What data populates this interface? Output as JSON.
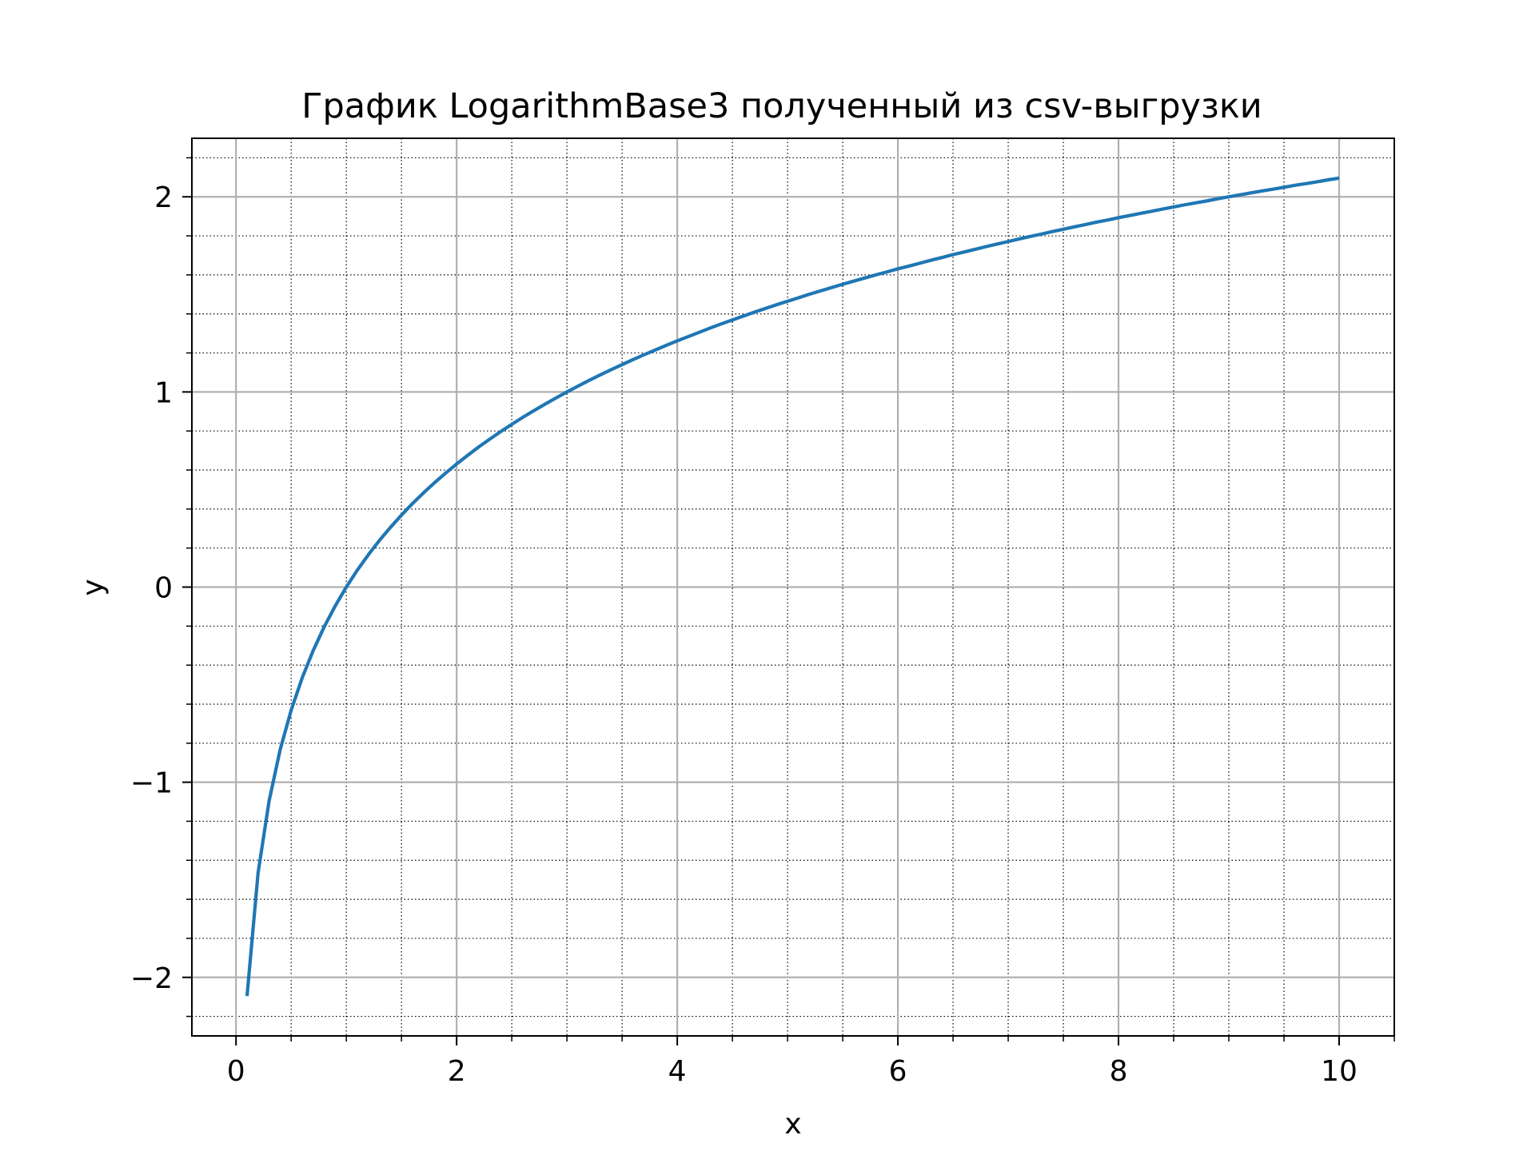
{
  "chart_data": {
    "type": "line",
    "title": "График LogarithmBase3 полученный из csv-выгрузки",
    "xlabel": "x",
    "ylabel": "y",
    "xlim": [
      -0.4,
      10.5
    ],
    "ylim": [
      -2.3,
      2.3
    ],
    "x_ticks": [
      0,
      2,
      4,
      6,
      8,
      10
    ],
    "x_tick_labels": [
      "0",
      "2",
      "4",
      "6",
      "8",
      "10"
    ],
    "y_ticks": [
      -2,
      -1,
      0,
      1,
      2
    ],
    "y_tick_labels": [
      "−2",
      "−1",
      "0",
      "1",
      "2"
    ],
    "x_minor_step": 0.5,
    "y_minor_step": 0.2,
    "grid_major": true,
    "grid_minor": true,
    "legend": false,
    "colors": {
      "line": "#1f77b4",
      "major_grid": "#b0b0b0",
      "minor_grid": "#000000",
      "axes": "#000000"
    },
    "series": [
      {
        "x": [
          0.1,
          0.2,
          0.3,
          0.4,
          0.5,
          0.6,
          0.7,
          0.8,
          0.9,
          1.0,
          1.1,
          1.2,
          1.3,
          1.4,
          1.5,
          1.6,
          1.7,
          1.8,
          1.9,
          2.0,
          2.1,
          2.2,
          2.3,
          2.4,
          2.5,
          2.6,
          2.7,
          2.8,
          2.9,
          3.0,
          3.1,
          3.2,
          3.3,
          3.4,
          3.5,
          3.6,
          3.7,
          3.8,
          3.9,
          4.0,
          4.1,
          4.2,
          4.3,
          4.4,
          4.5,
          4.6,
          4.7,
          4.8,
          4.9,
          5.0,
          5.1,
          5.2,
          5.3,
          5.4,
          5.5,
          5.6,
          5.7,
          5.8,
          5.9,
          6.0,
          6.1,
          6.2,
          6.3,
          6.4,
          6.5,
          6.6,
          6.7,
          6.8,
          6.9,
          7.0,
          7.1,
          7.2,
          7.3,
          7.4,
          7.5,
          7.6,
          7.7,
          7.8,
          7.9,
          8.0,
          8.1,
          8.2,
          8.3,
          8.4,
          8.5,
          8.6,
          8.7,
          8.8,
          8.9,
          9.0,
          9.1,
          9.2,
          9.3,
          9.4,
          9.5,
          9.6,
          9.7,
          9.8,
          9.9,
          10.0
        ],
        "y": [
          -2.096,
          -1.465,
          -1.096,
          -0.834,
          -0.631,
          -0.465,
          -0.325,
          -0.203,
          -0.096,
          0.0,
          0.087,
          0.166,
          0.239,
          0.306,
          0.369,
          0.428,
          0.483,
          0.535,
          0.584,
          0.631,
          0.675,
          0.718,
          0.758,
          0.797,
          0.834,
          0.87,
          0.904,
          0.937,
          0.969,
          1.0,
          1.03,
          1.059,
          1.087,
          1.114,
          1.14,
          1.166,
          1.191,
          1.215,
          1.239,
          1.262,
          1.284,
          1.306,
          1.328,
          1.349,
          1.369,
          1.389,
          1.409,
          1.428,
          1.447,
          1.465,
          1.483,
          1.501,
          1.518,
          1.535,
          1.552,
          1.568,
          1.584,
          1.6,
          1.615,
          1.631,
          1.645,
          1.66,
          1.675,
          1.689,
          1.704,
          1.717,
          1.731,
          1.745,
          1.758,
          1.771,
          1.784,
          1.797,
          1.809,
          1.822,
          1.834,
          1.846,
          1.858,
          1.87,
          1.881,
          1.893,
          1.904,
          1.915,
          1.926,
          1.937,
          1.948,
          1.959,
          1.969,
          1.979,
          1.99,
          2.0,
          2.01,
          2.02,
          2.03,
          2.039,
          2.049,
          2.059,
          2.068,
          2.077,
          2.087,
          2.096
        ]
      }
    ]
  }
}
